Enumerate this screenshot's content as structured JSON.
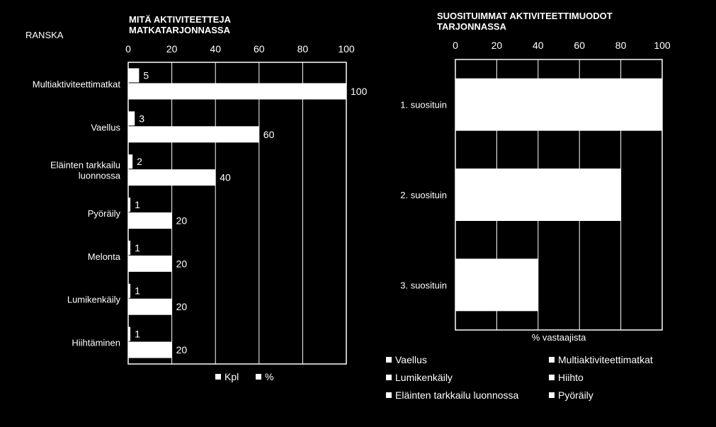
{
  "page": {
    "label": "RANSKA"
  },
  "chart_data": [
    {
      "type": "bar",
      "orientation": "horizontal",
      "title": "MITÄ AKTIVITEETTEJA\nMATKATARJONNASSA",
      "categories": [
        "Multiaktiviteettimatkat",
        "Vaellus",
        "Eläinten tarkkailu\nluonnossa",
        "Pyöräily",
        "Melonta",
        "Lumikenkäily",
        "Hiihtäminen"
      ],
      "series": [
        {
          "name": "Kpl",
          "values": [
            5,
            3,
            2,
            1,
            1,
            1,
            1
          ]
        },
        {
          "name": "%",
          "values": [
            100,
            60,
            40,
            20,
            20,
            20,
            20
          ]
        }
      ],
      "xlim": [
        0,
        100
      ],
      "xticks": [
        "0",
        "20",
        "40",
        "60",
        "80",
        "100"
      ],
      "grid": true,
      "legend": "bottom"
    },
    {
      "type": "bar",
      "orientation": "horizontal",
      "stacked": true,
      "title": "SUOSITUIMMAT AKTIVITEETTIMUODOT\nTARJONNASSA",
      "xlabel": "% vastaajista",
      "categories": [
        "1. suosituin",
        "2. suosituin",
        "3. suosituin"
      ],
      "series": [
        {
          "name": "Vaellus",
          "values": [
            100,
            80,
            40
          ]
        },
        {
          "name": "Multiaktiviteettimatkat",
          "values": [
            0,
            0,
            0
          ]
        },
        {
          "name": "Lumikenkäily",
          "values": [
            0,
            0,
            0
          ]
        },
        {
          "name": "Hiihto",
          "values": [
            0,
            0,
            0
          ]
        },
        {
          "name": "Eläinten tarkkailu luonnossa",
          "values": [
            0,
            0,
            0
          ]
        },
        {
          "name": "Pyöräily",
          "values": [
            0,
            0,
            0
          ]
        }
      ],
      "xlim": [
        0,
        100
      ],
      "xticks": [
        "0",
        "20",
        "40",
        "60",
        "80",
        "100"
      ],
      "grid": true,
      "legend": "bottom"
    }
  ]
}
